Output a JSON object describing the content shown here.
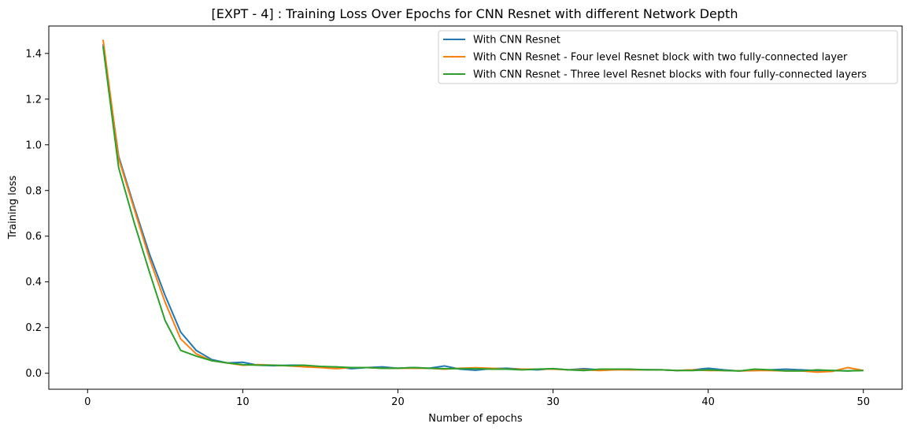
{
  "chart_data": {
    "type": "line",
    "title": "[EXPT - 4] : Training Loss Over Epochs for CNN Resnet with different Network Depth",
    "xlabel": "Number of epochs",
    "ylabel": "Training loss",
    "xlim": [
      -2.5,
      52.5
    ],
    "ylim": [
      -0.07,
      1.52
    ],
    "xticks": [
      0,
      10,
      20,
      30,
      40,
      50
    ],
    "xtick_labels": [
      "0",
      "10",
      "20",
      "30",
      "40",
      "50"
    ],
    "yticks": [
      0.0,
      0.2,
      0.4,
      0.6,
      0.8,
      1.0,
      1.2,
      1.4
    ],
    "ytick_labels": [
      "0.0",
      "0.2",
      "0.4",
      "0.6",
      "0.8",
      "1.0",
      "1.2",
      "1.4"
    ],
    "grid": false,
    "legend_position": "top-right",
    "x": [
      1,
      2,
      3,
      4,
      5,
      6,
      7,
      8,
      9,
      10,
      11,
      12,
      13,
      14,
      15,
      16,
      17,
      18,
      19,
      20,
      21,
      22,
      23,
      24,
      25,
      26,
      27,
      28,
      29,
      30,
      31,
      32,
      33,
      34,
      35,
      36,
      37,
      38,
      39,
      40,
      41,
      42,
      43,
      44,
      45,
      46,
      47,
      48,
      49,
      50
    ],
    "series": [
      {
        "name": "With CNN Resnet",
        "color": "#1f77b4",
        "values": [
          1.44,
          0.95,
          0.73,
          0.52,
          0.34,
          0.18,
          0.1,
          0.06,
          0.045,
          0.048,
          0.035,
          0.033,
          0.035,
          0.035,
          0.025,
          0.028,
          0.02,
          0.025,
          0.028,
          0.022,
          0.025,
          0.022,
          0.032,
          0.018,
          0.013,
          0.02,
          0.022,
          0.018,
          0.015,
          0.02,
          0.015,
          0.02,
          0.015,
          0.018,
          0.015,
          0.016,
          0.015,
          0.012,
          0.015,
          0.022,
          0.015,
          0.01,
          0.012,
          0.015,
          0.018,
          0.015,
          0.012,
          0.012,
          0.01,
          0.013
        ]
      },
      {
        "name": "With CNN Resnet - Four level Resnet block with two fully-connected layer",
        "color": "#ff7f0e",
        "values": [
          1.46,
          0.94,
          0.72,
          0.5,
          0.31,
          0.15,
          0.085,
          0.055,
          0.045,
          0.035,
          0.038,
          0.035,
          0.032,
          0.028,
          0.025,
          0.02,
          0.025,
          0.025,
          0.022,
          0.022,
          0.022,
          0.022,
          0.018,
          0.022,
          0.024,
          0.022,
          0.018,
          0.018,
          0.018,
          0.018,
          0.015,
          0.015,
          0.012,
          0.015,
          0.015,
          0.015,
          0.015,
          0.012,
          0.015,
          0.012,
          0.012,
          0.01,
          0.012,
          0.012,
          0.01,
          0.01,
          0.005,
          0.008,
          0.025,
          0.012
        ]
      },
      {
        "name": "With CNN Resnet - Three level Resnet blocks with four fully-connected layers",
        "color": "#2ca02c",
        "values": [
          1.43,
          0.9,
          0.66,
          0.44,
          0.23,
          0.1,
          0.075,
          0.055,
          0.045,
          0.038,
          0.035,
          0.035,
          0.033,
          0.035,
          0.03,
          0.028,
          0.025,
          0.025,
          0.022,
          0.022,
          0.025,
          0.022,
          0.02,
          0.02,
          0.02,
          0.018,
          0.018,
          0.015,
          0.018,
          0.02,
          0.015,
          0.012,
          0.018,
          0.018,
          0.018,
          0.015,
          0.015,
          0.012,
          0.012,
          0.015,
          0.012,
          0.01,
          0.018,
          0.015,
          0.01,
          0.01,
          0.015,
          0.012,
          0.01,
          0.012
        ]
      }
    ]
  }
}
